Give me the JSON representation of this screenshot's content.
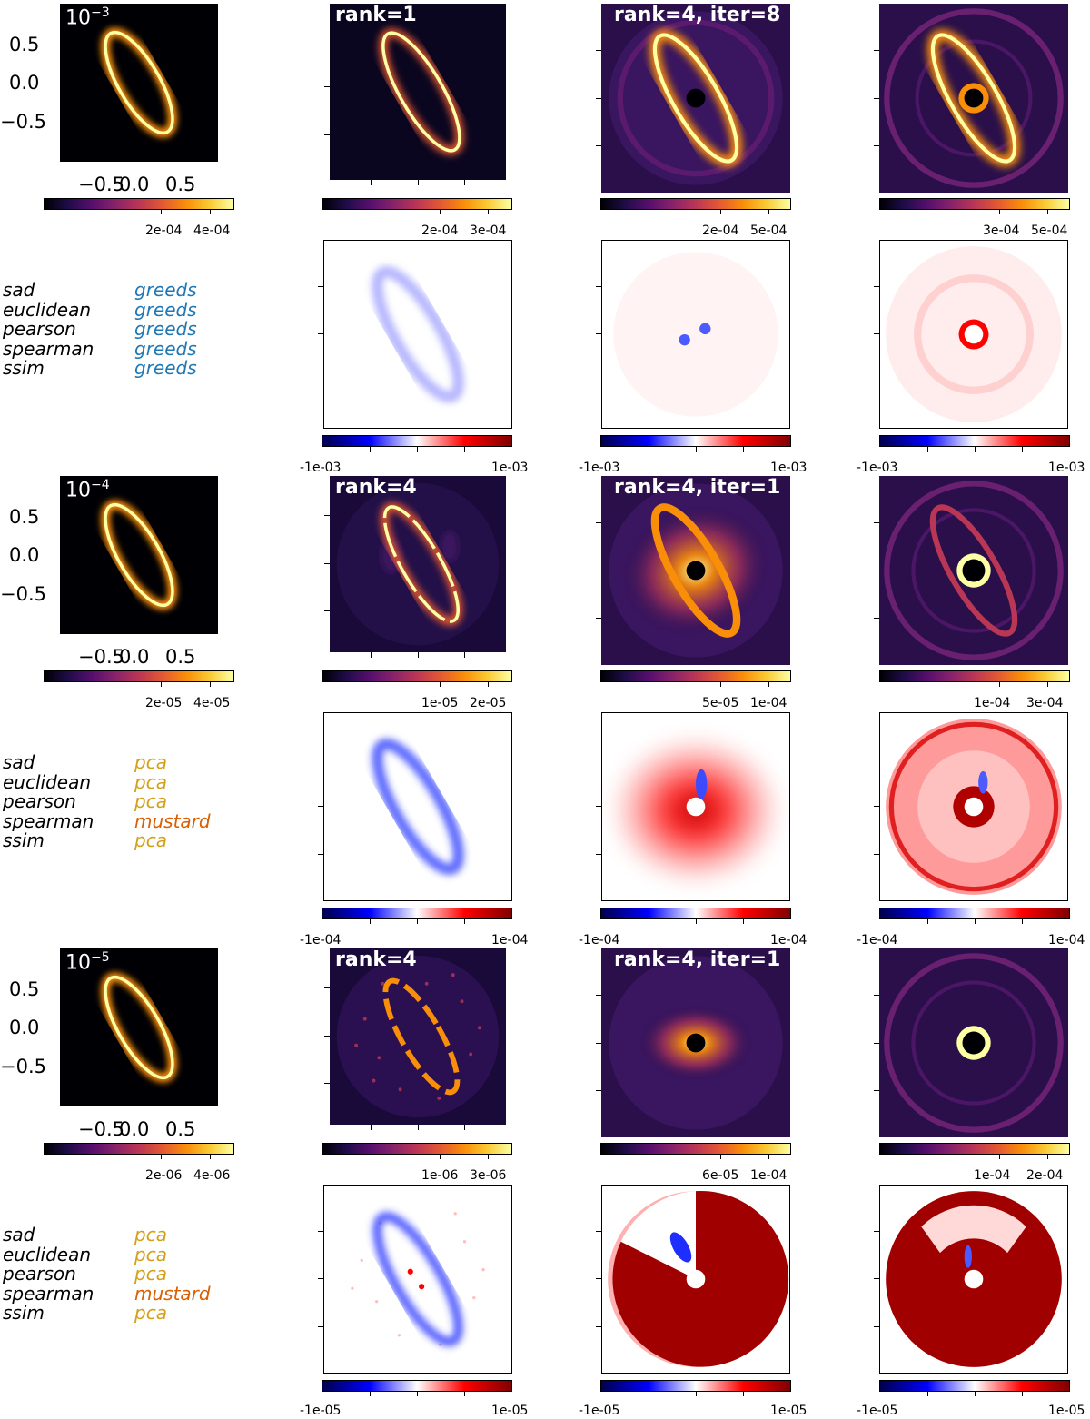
{
  "colors": {
    "greeds": "#1f77b4",
    "pca": "#d4a017",
    "mustard": "#d95f02"
  },
  "colormaps": {
    "intensity": "inferno",
    "residual": "seismic"
  },
  "rows": [
    {
      "contrast_base": "10",
      "contrast_exp": "−3",
      "axis": {
        "y_ticks": [
          "0.5",
          "0.0",
          "−0.5"
        ],
        "x_ticks": [
          "−0.5",
          "0.0",
          "0.5"
        ]
      },
      "truth_cbar": [
        "2e-04",
        "4e-04"
      ],
      "titles": {
        "col2": "rank=1",
        "col3": "rank=4, iter=8",
        "col4": ""
      },
      "cbar_top": {
        "col2": [
          "2e-04",
          "3e-04"
        ],
        "col3": [
          "2e-04",
          "5e-04"
        ],
        "col4": [
          "3e-04",
          "5e-04"
        ]
      },
      "cbar_res": [
        "-1e-03",
        "1e-03"
      ],
      "metrics": [
        "sad",
        "euclidean",
        "pearson",
        "spearman",
        "ssim"
      ],
      "winners": [
        "greeds",
        "greeds",
        "greeds",
        "greeds",
        "greeds"
      ]
    },
    {
      "contrast_base": "10",
      "contrast_exp": "−4",
      "axis": {
        "y_ticks": [
          "0.5",
          "0.0",
          "−0.5"
        ],
        "x_ticks": [
          "−0.5",
          "0.0",
          "0.5"
        ]
      },
      "truth_cbar": [
        "2e-05",
        "4e-05"
      ],
      "titles": {
        "col2": "rank=4",
        "col3": "rank=4, iter=1",
        "col4": ""
      },
      "cbar_top": {
        "col2": [
          "1e-05",
          "2e-05"
        ],
        "col3": [
          "5e-05",
          "1e-04"
        ],
        "col4": [
          "1e-04",
          "3e-04"
        ]
      },
      "cbar_res": [
        "-1e-04",
        "1e-04"
      ],
      "metrics": [
        "sad",
        "euclidean",
        "pearson",
        "spearman",
        "ssim"
      ],
      "winners": [
        "pca",
        "pca",
        "pca",
        "mustard",
        "pca"
      ]
    },
    {
      "contrast_base": "10",
      "contrast_exp": "−5",
      "axis": {
        "y_ticks": [
          "0.5",
          "0.0",
          "−0.5"
        ],
        "x_ticks": [
          "−0.5",
          "0.0",
          "0.5"
        ]
      },
      "truth_cbar": [
        "2e-06",
        "4e-06"
      ],
      "titles": {
        "col2": "rank=4",
        "col3": "rank=4, iter=1",
        "col4": ""
      },
      "cbar_top": {
        "col2": [
          "1e-06",
          "3e-06"
        ],
        "col3": [
          "6e-05",
          "1e-04"
        ],
        "col4": [
          "1e-04",
          "2e-04"
        ]
      },
      "cbar_res": [
        "-1e-05",
        "1e-05"
      ],
      "metrics": [
        "sad",
        "euclidean",
        "pearson",
        "spearman",
        "ssim"
      ],
      "winners": [
        "pca",
        "pca",
        "pca",
        "mustard",
        "pca"
      ]
    }
  ]
}
